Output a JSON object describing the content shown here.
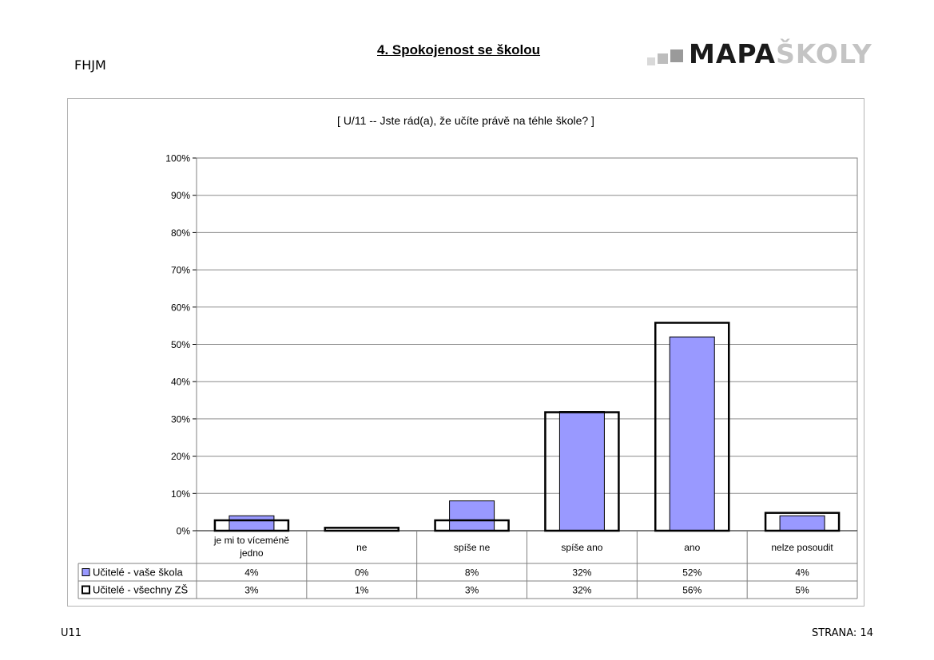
{
  "header": {
    "school_code": "FHJM",
    "section_title": "4. Spokojenost se školou",
    "logo": {
      "part1": "MAPA",
      "part2": "ŠKOLY",
      "colors": {
        "dark": "#1a1a1a",
        "light": "#c4c4c4"
      }
    }
  },
  "footer": {
    "code": "U11",
    "page": "STRANA: 14"
  },
  "chart_data": {
    "type": "bar",
    "title": "[ U/11 -- Jste rád(a), že učíte právě na téhle škole? ]",
    "categories": [
      [
        "je mi to víceméně",
        "jedno"
      ],
      [
        "ne"
      ],
      [
        "spíše ne"
      ],
      [
        "spíše ano"
      ],
      [
        "ano"
      ],
      [
        "nelze posoudit"
      ]
    ],
    "ylim": [
      0,
      100
    ],
    "yticks": [
      0,
      10,
      20,
      30,
      40,
      50,
      60,
      70,
      80,
      90,
      100
    ],
    "y_unit": "%",
    "grid": true,
    "series": [
      {
        "name": "Učitelé - vaše škola",
        "values": [
          4,
          0,
          8,
          32,
          52,
          4
        ],
        "labels": [
          "4%",
          "0%",
          "8%",
          "32%",
          "52%",
          "4%"
        ],
        "color": "#9999ff"
      },
      {
        "name": "Učitelé - všechny ZŠ",
        "values": [
          3,
          1,
          3,
          32,
          56,
          5
        ],
        "labels": [
          "3%",
          "1%",
          "3%",
          "32%",
          "56%",
          "5%"
        ],
        "color": "#ffffff"
      }
    ]
  }
}
